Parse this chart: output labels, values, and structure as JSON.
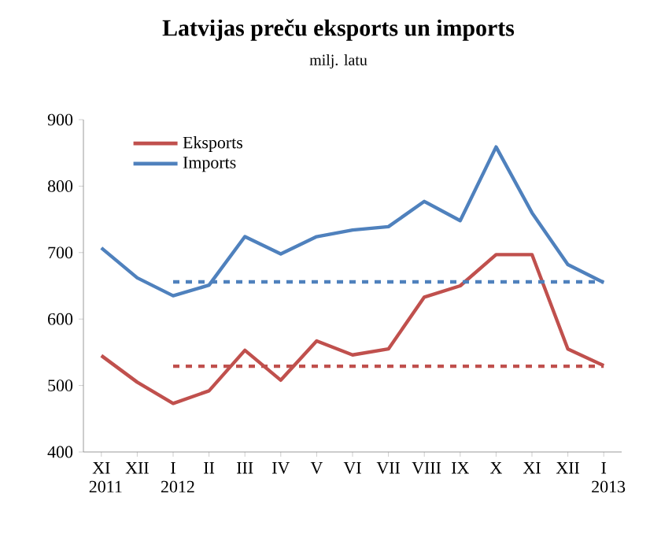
{
  "chart_data": {
    "type": "line",
    "title": "Latvijas preču eksports un imports",
    "subtitle": "milj. latu",
    "categories": [
      "XI 2011",
      "XII",
      "I 2012",
      "II",
      "III",
      "IV",
      "V",
      "VI",
      "VII",
      "VIII",
      "IX",
      "X",
      "XI",
      "XII",
      "I 2013"
    ],
    "series": [
      {
        "name": "Eksports",
        "color": "#c0504d",
        "values": [
          545,
          505,
          473,
          492,
          553,
          508,
          567,
          546,
          555,
          633,
          650,
          697,
          697,
          555,
          530
        ]
      },
      {
        "name": "Imports",
        "color": "#4f81bd",
        "values": [
          707,
          662,
          635,
          651,
          724,
          698,
          724,
          734,
          739,
          777,
          748,
          859,
          760,
          682,
          655
        ]
      },
      {
        "color": "#c0504d",
        "line_style": "dashed",
        "values": [
          null,
          null,
          529,
          529,
          529,
          529,
          529,
          529,
          529,
          529,
          529,
          529,
          529,
          529,
          529
        ]
      },
      {
        "color": "#4f81bd",
        "line_style": "dashed",
        "values": [
          null,
          null,
          656,
          656,
          656,
          656,
          656,
          656,
          656,
          656,
          656,
          656,
          656,
          656,
          656
        ]
      }
    ],
    "ylim": [
      400,
      900
    ],
    "yticks": [
      400,
      500,
      600,
      700,
      800,
      900
    ],
    "grid": false,
    "legend": "top left",
    "line_style": "solid",
    "marker": "none"
  }
}
